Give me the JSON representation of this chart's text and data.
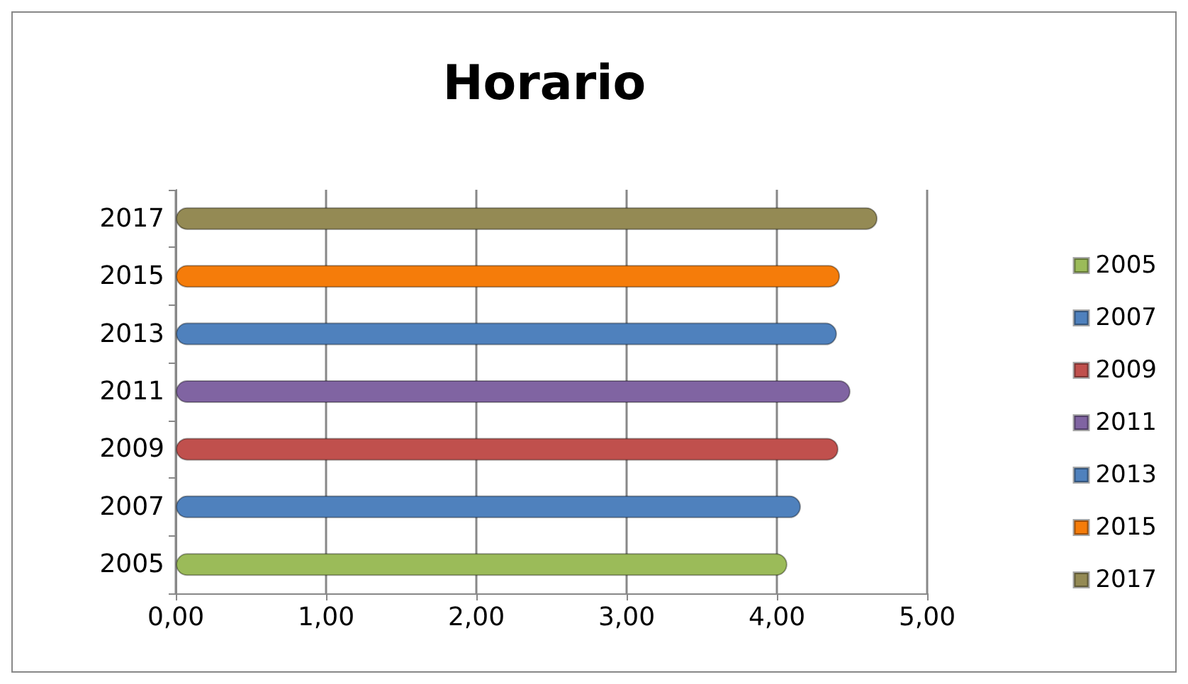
{
  "chart_data": {
    "type": "bar",
    "title": "Horario",
    "orientation": "horizontal",
    "categories": [
      "2017",
      "2015",
      "2013",
      "2011",
      "2009",
      "2007",
      "2005"
    ],
    "series": [
      {
        "name": "2005",
        "color": "#9bbb59",
        "values": [
          null,
          null,
          null,
          null,
          null,
          null,
          4.07
        ]
      },
      {
        "name": "2007",
        "color": "#4f81bd",
        "values": [
          null,
          null,
          null,
          null,
          null,
          4.16,
          null
        ]
      },
      {
        "name": "2009",
        "color": "#c0504d",
        "values": [
          null,
          null,
          null,
          null,
          4.41,
          null,
          null
        ]
      },
      {
        "name": "2011",
        "color": "#8064a2",
        "values": [
          null,
          null,
          null,
          4.49,
          null,
          null,
          null
        ]
      },
      {
        "name": "2013",
        "color": "#4f81bd",
        "values": [
          null,
          null,
          4.4,
          null,
          null,
          null,
          null
        ]
      },
      {
        "name": "2015",
        "color": "#f57c0a",
        "values": [
          null,
          4.42,
          null,
          null,
          null,
          null,
          null
        ]
      },
      {
        "name": "2017",
        "color": "#948a54",
        "values": [
          4.67,
          null,
          null,
          null,
          null,
          null,
          null
        ]
      }
    ],
    "xlim": [
      0,
      5
    ],
    "xticks": [
      {
        "value": 0,
        "label": "0,00"
      },
      {
        "value": 1,
        "label": "1,00"
      },
      {
        "value": 2,
        "label": "2,00"
      },
      {
        "value": 3,
        "label": "3,00"
      },
      {
        "value": 4,
        "label": "4,00"
      },
      {
        "value": 5,
        "label": "5,00"
      }
    ],
    "grid": "x",
    "legend": "right"
  }
}
